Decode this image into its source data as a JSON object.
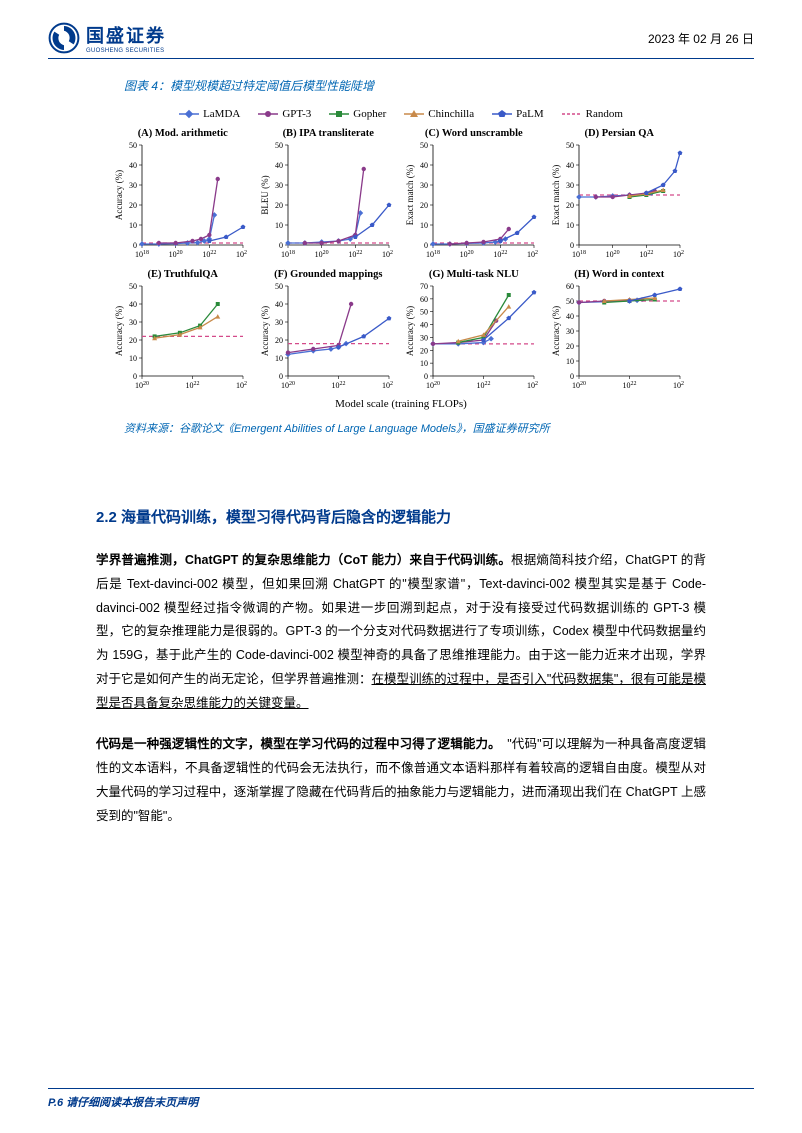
{
  "header": {
    "logo_cn": "国盛证券",
    "logo_en": "GUOSHENG SECURITIES",
    "date": "2023 年 02 月 26 日"
  },
  "figure": {
    "caption": "图表 4：模型规模超过特定阈值后模型性能陡增",
    "source": "资料来源：谷歌论文《Emergent Abilities of Large Language Models》，国盛证券研究所",
    "xlabel": "Model scale (training FLOPs)",
    "legend": [
      {
        "name": "LaMDA",
        "color": "#4a6fd4",
        "marker": "diamond"
      },
      {
        "name": "GPT-3",
        "color": "#8a3a8a",
        "marker": "circle"
      },
      {
        "name": "Gopher",
        "color": "#2a8a3a",
        "marker": "square"
      },
      {
        "name": "Chinchilla",
        "color": "#c88a4a",
        "marker": "triangle"
      },
      {
        "name": "PaLM",
        "color": "#3a5ac8",
        "marker": "pentagon"
      },
      {
        "name": "Random",
        "color": "#d44a8a",
        "marker": "dash"
      }
    ],
    "ylim": [
      0,
      50
    ],
    "yticks": [
      0,
      10,
      20,
      30,
      40,
      50
    ],
    "xticks_a": [
      "10^18",
      "10^20",
      "10^22",
      "10^24"
    ],
    "xticks_e": [
      "10^20",
      "10^22",
      "10^24"
    ],
    "subplots": [
      {
        "id": "A",
        "title": "(A) Mod. arithmetic",
        "ylabel": "Accuracy (%)",
        "xticks": "a",
        "random": 1,
        "series": [
          {
            "c": "#4a6fd4",
            "pts": [
              [
                18,
                0.5
              ],
              [
                19,
                0.5
              ],
              [
                20,
                0.7
              ],
              [
                20.7,
                1
              ],
              [
                21.3,
                1.2
              ],
              [
                21.7,
                2
              ],
              [
                22,
                3
              ],
              [
                22.3,
                15
              ]
            ]
          },
          {
            "c": "#8a3a8a",
            "pts": [
              [
                19,
                1
              ],
              [
                20,
                1
              ],
              [
                21,
                2
              ],
              [
                21.5,
                3
              ],
              [
                22,
                5
              ],
              [
                22.5,
                33
              ]
            ]
          },
          {
            "c": "#3a5ac8",
            "pts": [
              [
                22,
                2
              ],
              [
                23,
                4
              ],
              [
                24,
                9
              ]
            ]
          }
        ]
      },
      {
        "id": "B",
        "title": "(B) IPA transliterate",
        "ylabel": "BLEU (%)",
        "xticks": "a",
        "random": 1,
        "series": [
          {
            "c": "#4a6fd4",
            "pts": [
              [
                18,
                1
              ],
              [
                19,
                1
              ],
              [
                20,
                1.5
              ],
              [
                21,
                2
              ],
              [
                21.7,
                3
              ],
              [
                22,
                5
              ],
              [
                22.3,
                16
              ]
            ]
          },
          {
            "c": "#8a3a8a",
            "pts": [
              [
                19,
                1
              ],
              [
                20,
                1
              ],
              [
                21,
                2
              ],
              [
                22,
                5
              ],
              [
                22.5,
                38
              ]
            ]
          },
          {
            "c": "#3a5ac8",
            "pts": [
              [
                22,
                4
              ],
              [
                23,
                10
              ],
              [
                24,
                20
              ]
            ]
          }
        ]
      },
      {
        "id": "C",
        "title": "(C) Word unscramble",
        "ylabel": "Exact match (%)",
        "xticks": "a",
        "random": 1,
        "series": [
          {
            "c": "#4a6fd4",
            "pts": [
              [
                18,
                0.5
              ],
              [
                19,
                0.5
              ],
              [
                20,
                0.8
              ],
              [
                21,
                1
              ],
              [
                21.7,
                1.5
              ],
              [
                22,
                2
              ],
              [
                22.3,
                3
              ]
            ]
          },
          {
            "c": "#8a3a8a",
            "pts": [
              [
                19,
                0.5
              ],
              [
                20,
                1
              ],
              [
                21,
                1.5
              ],
              [
                22,
                3
              ],
              [
                22.5,
                8
              ]
            ]
          },
          {
            "c": "#3a5ac8",
            "pts": [
              [
                22,
                2
              ],
              [
                23,
                6
              ],
              [
                24,
                14
              ]
            ]
          }
        ]
      },
      {
        "id": "D",
        "title": "(D) Persian QA",
        "ylabel": "Exact match (%)",
        "xticks": "a",
        "random": 25,
        "series": [
          {
            "c": "#4a6fd4",
            "pts": [
              [
                18,
                24
              ],
              [
                19,
                24
              ],
              [
                20,
                24.5
              ],
              [
                21,
                25
              ],
              [
                22,
                25.5
              ],
              [
                22.3,
                26
              ]
            ]
          },
          {
            "c": "#8a3a8a",
            "pts": [
              [
                19,
                24
              ],
              [
                20,
                24
              ],
              [
                21,
                25
              ],
              [
                22,
                26
              ],
              [
                22.5,
                27
              ]
            ]
          },
          {
            "c": "#2a8a3a",
            "pts": [
              [
                21,
                24
              ],
              [
                22,
                25
              ],
              [
                23,
                27
              ]
            ]
          },
          {
            "c": "#c88a4a",
            "pts": [
              [
                21,
                24.5
              ],
              [
                22,
                25.5
              ],
              [
                23,
                27.5
              ]
            ]
          },
          {
            "c": "#3a5ac8",
            "pts": [
              [
                22,
                26
              ],
              [
                23,
                30
              ],
              [
                23.7,
                37
              ],
              [
                24,
                46
              ]
            ]
          }
        ]
      },
      {
        "id": "E",
        "title": "(E) TruthfulQA",
        "ylabel": "Accuracy (%)",
        "xticks": "e",
        "random": 22,
        "series": [
          {
            "c": "#2a8a3a",
            "pts": [
              [
                20.5,
                22
              ],
              [
                21.5,
                24
              ],
              [
                22.3,
                28
              ],
              [
                23,
                40
              ]
            ]
          },
          {
            "c": "#c88a4a",
            "pts": [
              [
                20.5,
                21
              ],
              [
                21.5,
                23
              ],
              [
                22.3,
                27
              ],
              [
                23,
                33
              ]
            ]
          }
        ]
      },
      {
        "id": "F",
        "title": "(F) Grounded mappings",
        "ylabel": "Accuracy (%)",
        "xticks": "e",
        "random": 18,
        "series": [
          {
            "c": "#4a6fd4",
            "pts": [
              [
                20,
                12
              ],
              [
                21,
                14
              ],
              [
                21.7,
                15
              ],
              [
                22,
                16
              ],
              [
                22.3,
                18
              ]
            ]
          },
          {
            "c": "#8a3a8a",
            "pts": [
              [
                20,
                13
              ],
              [
                21,
                15
              ],
              [
                22,
                17
              ],
              [
                22.5,
                40
              ]
            ]
          },
          {
            "c": "#3a5ac8",
            "pts": [
              [
                22,
                16
              ],
              [
                23,
                22
              ],
              [
                24,
                32
              ]
            ]
          }
        ]
      },
      {
        "id": "G",
        "title": "(G) Multi-task NLU",
        "ylabel": "Accuracy (%)",
        "xticks": "e",
        "random": 25,
        "series": [
          {
            "c": "#4a6fd4",
            "pts": [
              [
                20,
                25
              ],
              [
                21,
                25
              ],
              [
                22,
                26
              ],
              [
                22.3,
                29
              ]
            ]
          },
          {
            "c": "#8a3a8a",
            "pts": [
              [
                20,
                25
              ],
              [
                21,
                26
              ],
              [
                22,
                28
              ],
              [
                22.5,
                43
              ]
            ]
          },
          {
            "c": "#2a8a3a",
            "pts": [
              [
                21,
                26
              ],
              [
                22,
                30
              ],
              [
                23,
                63
              ]
            ]
          },
          {
            "c": "#c88a4a",
            "pts": [
              [
                21,
                27
              ],
              [
                22,
                32
              ],
              [
                23,
                54
              ]
            ]
          },
          {
            "c": "#3a5ac8",
            "pts": [
              [
                22,
                28
              ],
              [
                23,
                45
              ],
              [
                24,
                65
              ]
            ]
          }
        ]
      },
      {
        "id": "H",
        "title": "(H) Word in context",
        "ylabel": "Accuracy (%)",
        "xticks": "e",
        "random": 50,
        "series": [
          {
            "c": "#4a6fd4",
            "pts": [
              [
                20,
                49
              ],
              [
                21,
                49.5
              ],
              [
                22,
                50
              ],
              [
                22.3,
                50.5
              ]
            ]
          },
          {
            "c": "#8a3a8a",
            "pts": [
              [
                20,
                49
              ],
              [
                21,
                50
              ],
              [
                22,
                50.5
              ],
              [
                22.5,
                51
              ]
            ]
          },
          {
            "c": "#2a8a3a",
            "pts": [
              [
                21,
                49
              ],
              [
                22,
                50
              ],
              [
                23,
                51
              ]
            ]
          },
          {
            "c": "#c88a4a",
            "pts": [
              [
                21,
                50
              ],
              [
                22,
                51
              ],
              [
                23,
                52
              ]
            ]
          },
          {
            "c": "#3a5ac8",
            "pts": [
              [
                22,
                50
              ],
              [
                23,
                54
              ],
              [
                24,
                58
              ]
            ]
          }
        ]
      }
    ]
  },
  "section": {
    "title": "2.2  海量代码训练，模型习得代码背后隐含的逻辑能力",
    "p1_bold": "学界普遍推测，ChatGPT 的复杂思维能力（CoT 能力）来自于代码训练。",
    "p1_body": "根据熵简科技介绍，ChatGPT 的背后是 Text-davinci-002 模型，但如果回溯 ChatGPT 的\"模型家谱\"，Text-davinci-002 模型其实是基于 Code-davinci-002 模型经过指令微调的产物。如果进一步回溯到起点，对于没有接受过代码数据训练的 GPT-3 模型，它的复杂推理能力是很弱的。GPT-3 的一个分支对代码数据进行了专项训练，Codex 模型中代码数据量约为 159G，基于此产生的 Code-davinci-002 模型神奇的具备了思维推理能力。由于这一能力近来才出现，学界对于它是如何产生的尚无定论，但学界普遍推测：",
    "p1_ul": "在模型训练的过程中，是否引入\"代码数据集\"，很有可能是模型是否具备复杂思维能力的关键变量。",
    "p2_bold": "代码是一种强逻辑性的文字，模型在学习代码的过程中习得了逻辑能力。",
    "p2_body": "\"代码\"可以理解为一种具备高度逻辑性的文本语料，不具备逻辑性的代码会无法执行，而不像普通文本语料那样有着较高的逻辑自由度。模型从对大量代码的学习过程中，逐渐掌握了隐藏在代码背后的抽象能力与逻辑能力，进而涌现出我们在 ChatGPT 上感受到的\"智能\"。"
  },
  "footer": {
    "text": "P.6 请仔细阅读本报告末页声明"
  }
}
